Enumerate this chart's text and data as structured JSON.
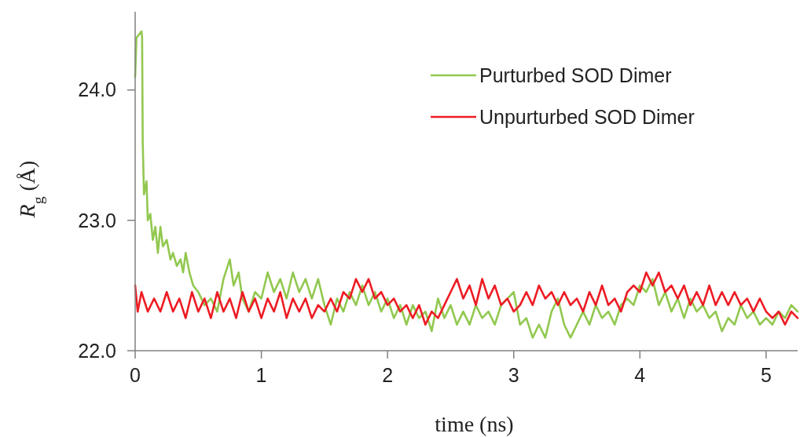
{
  "chart_data": {
    "type": "line",
    "xlabel": "time (ns)",
    "ylabel": "R$_{g}$ (Å)",
    "xlim": [
      0,
      5.25
    ],
    "ylim": [
      22,
      24.6
    ],
    "xticks": [
      0,
      1,
      2,
      3,
      4,
      5
    ],
    "yticks": [
      {
        "value": 22,
        "label": "22.0"
      },
      {
        "value": 23,
        "label": "23.0"
      },
      {
        "value": 24,
        "label": "24.0"
      }
    ],
    "grid": false,
    "legend": "top right",
    "marker": "none",
    "line_style": "solid",
    "series": [
      {
        "name": "Purturbed SOD Dimer",
        "color": "#92c850",
        "x": [
          0,
          0.01,
          0.05,
          0.055,
          0.06,
          0.07,
          0.09,
          0.1,
          0.12,
          0.14,
          0.16,
          0.18,
          0.2,
          0.22,
          0.25,
          0.28,
          0.3,
          0.33,
          0.36,
          0.38,
          0.4,
          0.43,
          0.46,
          0.5,
          0.55,
          0.6,
          0.65,
          0.7,
          0.75,
          0.78,
          0.82,
          0.85,
          0.9,
          0.95,
          1.0,
          1.05,
          1.1,
          1.15,
          1.2,
          1.25,
          1.3,
          1.35,
          1.4,
          1.45,
          1.5,
          1.55,
          1.6,
          1.65,
          1.7,
          1.75,
          1.8,
          1.85,
          1.9,
          1.95,
          2.0,
          2.05,
          2.1,
          2.15,
          2.2,
          2.25,
          2.3,
          2.35,
          2.4,
          2.45,
          2.5,
          2.55,
          2.6,
          2.65,
          2.7,
          2.75,
          2.8,
          2.85,
          2.9,
          2.95,
          3.0,
          3.05,
          3.1,
          3.15,
          3.2,
          3.25,
          3.3,
          3.35,
          3.4,
          3.45,
          3.5,
          3.55,
          3.6,
          3.65,
          3.7,
          3.75,
          3.8,
          3.85,
          3.9,
          3.95,
          4.0,
          4.05,
          4.1,
          4.15,
          4.2,
          4.25,
          4.3,
          4.35,
          4.4,
          4.45,
          4.5,
          4.55,
          4.6,
          4.65,
          4.7,
          4.75,
          4.8,
          4.85,
          4.9,
          4.95,
          5.0,
          5.05,
          5.1,
          5.15,
          5.2,
          5.25
        ],
        "values": [
          24.1,
          24.4,
          24.45,
          24.4,
          23.6,
          23.2,
          23.3,
          23.0,
          23.05,
          22.85,
          22.95,
          22.75,
          22.95,
          22.8,
          22.85,
          22.7,
          22.75,
          22.65,
          22.7,
          22.6,
          22.75,
          22.6,
          22.5,
          22.45,
          22.35,
          22.4,
          22.3,
          22.55,
          22.7,
          22.5,
          22.6,
          22.4,
          22.3,
          22.45,
          22.4,
          22.6,
          22.45,
          22.55,
          22.4,
          22.6,
          22.45,
          22.55,
          22.4,
          22.55,
          22.35,
          22.2,
          22.4,
          22.3,
          22.45,
          22.35,
          22.5,
          22.35,
          22.45,
          22.3,
          22.4,
          22.25,
          22.35,
          22.2,
          22.35,
          22.25,
          22.3,
          22.15,
          22.4,
          22.25,
          22.35,
          22.2,
          22.3,
          22.2,
          22.35,
          22.25,
          22.3,
          22.2,
          22.35,
          22.4,
          22.45,
          22.2,
          22.25,
          22.1,
          22.2,
          22.1,
          22.3,
          22.4,
          22.2,
          22.1,
          22.2,
          22.3,
          22.2,
          22.35,
          22.25,
          22.3,
          22.2,
          22.35,
          22.4,
          22.35,
          22.5,
          22.45,
          22.55,
          22.35,
          22.45,
          22.3,
          22.4,
          22.25,
          22.4,
          22.3,
          22.35,
          22.25,
          22.3,
          22.15,
          22.25,
          22.2,
          22.35,
          22.25,
          22.3,
          22.2,
          22.25,
          22.2,
          22.3,
          22.25,
          22.35,
          22.3
        ]
      },
      {
        "name": "Unpurturbed SOD Dimer",
        "color": "#ed1c24",
        "x": [
          0,
          0.02,
          0.05,
          0.1,
          0.15,
          0.2,
          0.25,
          0.3,
          0.35,
          0.4,
          0.45,
          0.5,
          0.55,
          0.6,
          0.65,
          0.7,
          0.75,
          0.8,
          0.85,
          0.9,
          0.95,
          1.0,
          1.05,
          1.1,
          1.15,
          1.2,
          1.25,
          1.3,
          1.35,
          1.4,
          1.45,
          1.5,
          1.55,
          1.6,
          1.65,
          1.7,
          1.75,
          1.8,
          1.85,
          1.9,
          1.95,
          2.0,
          2.05,
          2.1,
          2.15,
          2.2,
          2.25,
          2.3,
          2.35,
          2.4,
          2.45,
          2.5,
          2.55,
          2.6,
          2.65,
          2.7,
          2.75,
          2.8,
          2.85,
          2.9,
          2.95,
          3.0,
          3.05,
          3.1,
          3.15,
          3.2,
          3.25,
          3.3,
          3.35,
          3.4,
          3.45,
          3.5,
          3.55,
          3.6,
          3.65,
          3.7,
          3.75,
          3.8,
          3.85,
          3.9,
          3.95,
          4.0,
          4.05,
          4.1,
          4.15,
          4.2,
          4.25,
          4.3,
          4.35,
          4.4,
          4.45,
          4.5,
          4.55,
          4.6,
          4.65,
          4.7,
          4.75,
          4.8,
          4.85,
          4.9,
          4.95,
          5.0,
          5.05,
          5.1,
          5.15,
          5.2,
          5.25
        ],
        "values": [
          22.5,
          22.3,
          22.45,
          22.3,
          22.4,
          22.3,
          22.45,
          22.3,
          22.4,
          22.25,
          22.45,
          22.3,
          22.4,
          22.25,
          22.45,
          22.3,
          22.4,
          22.25,
          22.45,
          22.3,
          22.4,
          22.25,
          22.4,
          22.3,
          22.45,
          22.25,
          22.4,
          22.3,
          22.4,
          22.25,
          22.35,
          22.3,
          22.4,
          22.3,
          22.45,
          22.4,
          22.55,
          22.45,
          22.55,
          22.4,
          22.45,
          22.35,
          22.4,
          22.3,
          22.35,
          22.25,
          22.35,
          22.2,
          22.3,
          22.25,
          22.35,
          22.45,
          22.55,
          22.4,
          22.5,
          22.35,
          22.55,
          22.4,
          22.5,
          22.35,
          22.4,
          22.3,
          22.35,
          22.45,
          22.35,
          22.5,
          22.4,
          22.45,
          22.35,
          22.45,
          22.35,
          22.4,
          22.3,
          22.45,
          22.35,
          22.5,
          22.35,
          22.4,
          22.3,
          22.45,
          22.5,
          22.45,
          22.6,
          22.5,
          22.6,
          22.45,
          22.5,
          22.4,
          22.5,
          22.35,
          22.45,
          22.35,
          22.5,
          22.35,
          22.45,
          22.35,
          22.45,
          22.35,
          22.4,
          22.3,
          22.4,
          22.3,
          22.25,
          22.3,
          22.2,
          22.3,
          22.25
        ]
      }
    ]
  }
}
